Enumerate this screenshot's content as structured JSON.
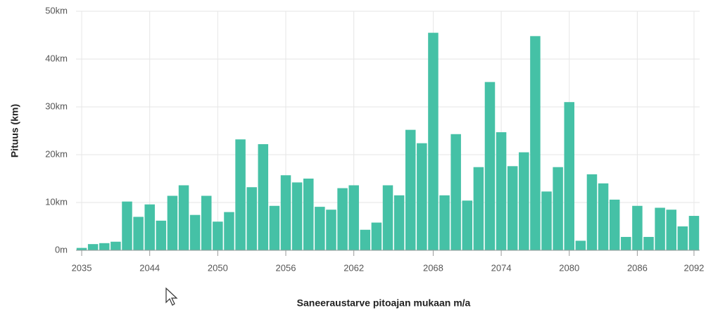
{
  "chart_data": {
    "type": "bar",
    "x_label": "Saneeraustarve pitoajan mukaan m/a",
    "y_label": "Pituus (km)",
    "color": "#45c1a6",
    "grid": true,
    "categories": [
      "2035",
      null,
      null,
      null,
      null,
      null,
      "2044",
      null,
      null,
      null,
      null,
      null,
      "2050",
      null,
      null,
      null,
      null,
      null,
      "2056",
      null,
      null,
      null,
      null,
      null,
      "2062",
      null,
      null,
      null,
      null,
      null,
      null,
      "2068",
      null,
      null,
      null,
      null,
      null,
      "2074",
      null,
      null,
      null,
      null,
      null,
      "2080",
      null,
      null,
      null,
      null,
      null,
      "2086",
      null,
      null,
      null,
      null,
      "2092"
    ],
    "values": [
      0.5,
      1.3,
      1.5,
      1.8,
      10.2,
      7.0,
      9.6,
      6.2,
      11.4,
      13.6,
      7.4,
      11.4,
      6.0,
      8.0,
      23.2,
      13.2,
      22.2,
      9.3,
      15.7,
      14.2,
      15.0,
      9.1,
      8.5,
      13.0,
      13.6,
      4.3,
      5.8,
      13.6,
      11.5,
      25.2,
      22.4,
      45.5,
      11.5,
      24.3,
      10.4,
      17.4,
      35.2,
      24.7,
      17.6,
      20.5,
      44.8,
      12.3,
      17.4,
      31.0,
      2.0,
      15.9,
      14.0,
      10.6,
      2.8,
      9.3,
      2.8,
      8.9,
      8.5,
      5.0,
      7.2
    ],
    "ylim": [
      0,
      50
    ],
    "yticks": [
      {
        "value": 0,
        "label": "0m"
      },
      {
        "value": 10,
        "label": "10km"
      },
      {
        "value": 20,
        "label": "20km"
      },
      {
        "value": 30,
        "label": "30km"
      },
      {
        "value": 40,
        "label": "40km"
      },
      {
        "value": 50,
        "label": "50km"
      }
    ]
  }
}
